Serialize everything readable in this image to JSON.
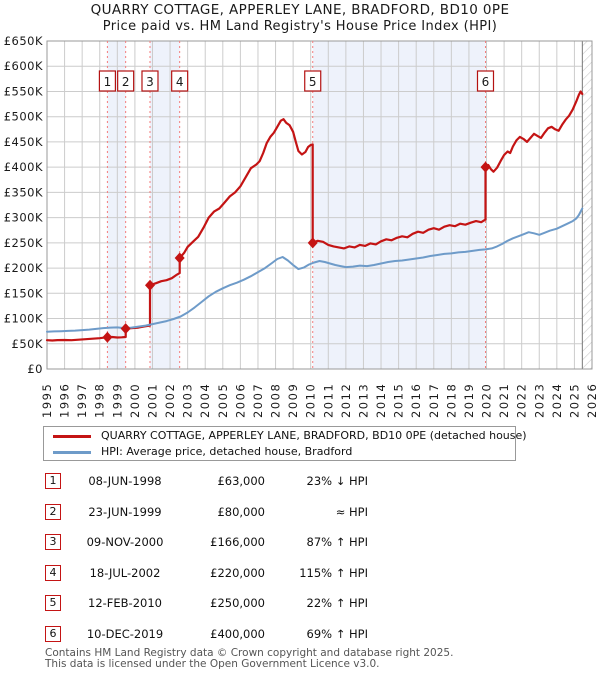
{
  "page": {
    "title": "QUARRY COTTAGE, APPERLEY LANE, BRADFORD, BD10 0PE",
    "subtitle": "Price paid vs. HM Land Registry's House Price Index (HPI)"
  },
  "chart_data": {
    "type": "line",
    "title": "QUARRY COTTAGE, APPERLEY LANE, BRADFORD, BD10 0PE",
    "subtitle": "Price paid vs. HM Land Registry's House Price Index (HPI)",
    "units": "GBP_thousands",
    "x_axis": {
      "start": 1995,
      "end": 2026,
      "years": [
        1995,
        1996,
        1997,
        1998,
        1999,
        2000,
        2001,
        2002,
        2003,
        2004,
        2005,
        2006,
        2007,
        2008,
        2009,
        2010,
        2011,
        2012,
        2013,
        2014,
        2015,
        2016,
        2017,
        2018,
        2019,
        2020,
        2021,
        2022,
        2023,
        2024,
        2025,
        2026
      ]
    },
    "y_axis": {
      "min": 0,
      "max": 650,
      "tick_step": 50,
      "tick_labels": [
        "£0",
        "£50K",
        "£100K",
        "£150K",
        "£200K",
        "£250K",
        "£300K",
        "£350K",
        "£400K",
        "£450K",
        "£500K",
        "£550K",
        "£600K",
        "£650K"
      ]
    },
    "grid": true,
    "legend_position": "below",
    "future_hatch_start": 2025.45,
    "ownership_bands": [
      [
        1998.436,
        1999.474
      ],
      [
        2000.858,
        2002.546
      ],
      [
        2010.115,
        2019.942
      ]
    ],
    "colors": {
      "price": "#c41414",
      "hpi": "#6e9bc9",
      "band": "#eef2fb",
      "dashed": "#f47c7c",
      "grid": "#cccccc",
      "border": "#999999",
      "hatch": "#c9c9c9",
      "hatch_edge": "#777777"
    },
    "series": [
      {
        "name": "QUARRY COTTAGE, APPERLEY LANE, BRADFORD, BD10 0PE (detached house)",
        "color": "#c41414",
        "points": [
          [
            1995.0,
            57
          ],
          [
            1995.3,
            56.5
          ],
          [
            1995.6,
            57.2
          ],
          [
            1996.0,
            57.5
          ],
          [
            1996.4,
            57
          ],
          [
            1996.8,
            58
          ],
          [
            1997.2,
            59
          ],
          [
            1997.6,
            60
          ],
          [
            1998.0,
            61
          ],
          [
            1998.436,
            63
          ],
          [
            1998.7,
            63.5
          ],
          [
            1999.0,
            62.5
          ],
          [
            1999.25,
            62.8
          ],
          [
            1999.474,
            63.5
          ],
          [
            1999.474,
            80
          ],
          [
            1999.8,
            81
          ],
          [
            2000.2,
            82
          ],
          [
            2000.5,
            84
          ],
          [
            2000.858,
            86
          ],
          [
            2000.858,
            166
          ],
          [
            2001.2,
            170
          ],
          [
            2001.5,
            174
          ],
          [
            2001.8,
            176
          ],
          [
            2002.1,
            180
          ],
          [
            2002.35,
            186
          ],
          [
            2002.546,
            190
          ],
          [
            2002.546,
            220
          ],
          [
            2002.8,
            230
          ],
          [
            2003.0,
            242
          ],
          [
            2003.3,
            252
          ],
          [
            2003.6,
            262
          ],
          [
            2003.9,
            280
          ],
          [
            2004.2,
            300
          ],
          [
            2004.5,
            312
          ],
          [
            2004.8,
            318
          ],
          [
            2005.1,
            330
          ],
          [
            2005.4,
            342
          ],
          [
            2005.7,
            350
          ],
          [
            2006.0,
            362
          ],
          [
            2006.3,
            380
          ],
          [
            2006.6,
            398
          ],
          [
            2006.9,
            405
          ],
          [
            2007.1,
            412
          ],
          [
            2007.3,
            428
          ],
          [
            2007.5,
            448
          ],
          [
            2007.7,
            460
          ],
          [
            2007.9,
            468
          ],
          [
            2008.1,
            480
          ],
          [
            2008.3,
            492
          ],
          [
            2008.45,
            495
          ],
          [
            2008.6,
            488
          ],
          [
            2008.8,
            483
          ],
          [
            2009.0,
            470
          ],
          [
            2009.15,
            450
          ],
          [
            2009.3,
            432
          ],
          [
            2009.5,
            425
          ],
          [
            2009.7,
            430
          ],
          [
            2009.85,
            440
          ],
          [
            2010.0,
            444
          ],
          [
            2010.115,
            445
          ],
          [
            2010.115,
            250
          ],
          [
            2010.4,
            254
          ],
          [
            2010.7,
            252
          ],
          [
            2011.0,
            246
          ],
          [
            2011.3,
            243
          ],
          [
            2011.6,
            241
          ],
          [
            2011.9,
            239
          ],
          [
            2012.2,
            243
          ],
          [
            2012.5,
            241
          ],
          [
            2012.8,
            246
          ],
          [
            2013.1,
            244
          ],
          [
            2013.4,
            249
          ],
          [
            2013.7,
            247
          ],
          [
            2014.0,
            253
          ],
          [
            2014.3,
            257
          ],
          [
            2014.6,
            255
          ],
          [
            2014.9,
            260
          ],
          [
            2015.2,
            263
          ],
          [
            2015.5,
            261
          ],
          [
            2015.8,
            268
          ],
          [
            2016.1,
            272
          ],
          [
            2016.4,
            270
          ],
          [
            2016.7,
            276
          ],
          [
            2017.0,
            279
          ],
          [
            2017.3,
            276
          ],
          [
            2017.6,
            282
          ],
          [
            2017.9,
            285
          ],
          [
            2018.2,
            283
          ],
          [
            2018.5,
            288
          ],
          [
            2018.8,
            286
          ],
          [
            2019.1,
            290
          ],
          [
            2019.4,
            293
          ],
          [
            2019.7,
            291
          ],
          [
            2019.942,
            296
          ],
          [
            2019.942,
            400
          ],
          [
            2020.1,
            404
          ],
          [
            2020.25,
            396
          ],
          [
            2020.4,
            391
          ],
          [
            2020.6,
            399
          ],
          [
            2020.8,
            412
          ],
          [
            2021.0,
            424
          ],
          [
            2021.2,
            431
          ],
          [
            2021.35,
            428
          ],
          [
            2021.5,
            441
          ],
          [
            2021.7,
            453
          ],
          [
            2021.9,
            460
          ],
          [
            2022.1,
            456
          ],
          [
            2022.3,
            450
          ],
          [
            2022.5,
            458
          ],
          [
            2022.7,
            466
          ],
          [
            2022.9,
            462
          ],
          [
            2023.1,
            458
          ],
          [
            2023.3,
            468
          ],
          [
            2023.5,
            477
          ],
          [
            2023.7,
            480
          ],
          [
            2023.9,
            475
          ],
          [
            2024.1,
            472
          ],
          [
            2024.3,
            484
          ],
          [
            2024.5,
            494
          ],
          [
            2024.7,
            502
          ],
          [
            2024.9,
            514
          ],
          [
            2025.1,
            530
          ],
          [
            2025.25,
            543
          ],
          [
            2025.35,
            550
          ],
          [
            2025.45,
            545
          ]
        ]
      },
      {
        "name": "HPI: Average price, detached house, Bradford",
        "color": "#6e9bc9",
        "points": [
          [
            1995.0,
            74
          ],
          [
            1995.4,
            74.5
          ],
          [
            1995.8,
            75
          ],
          [
            1996.2,
            75.5
          ],
          [
            1996.6,
            76
          ],
          [
            1997.0,
            77
          ],
          [
            1997.4,
            78
          ],
          [
            1997.8,
            79.5
          ],
          [
            1998.2,
            81
          ],
          [
            1998.6,
            82
          ],
          [
            1999.0,
            82.5
          ],
          [
            1999.4,
            81
          ],
          [
            1999.8,
            82
          ],
          [
            2000.2,
            84
          ],
          [
            2000.6,
            86
          ],
          [
            2001.0,
            89
          ],
          [
            2001.4,
            92
          ],
          [
            2001.8,
            95
          ],
          [
            2002.2,
            99
          ],
          [
            2002.6,
            104
          ],
          [
            2003.0,
            112
          ],
          [
            2003.4,
            122
          ],
          [
            2003.8,
            133
          ],
          [
            2004.2,
            144
          ],
          [
            2004.6,
            153
          ],
          [
            2005.0,
            160
          ],
          [
            2005.4,
            166
          ],
          [
            2005.8,
            171
          ],
          [
            2006.2,
            177
          ],
          [
            2006.6,
            184
          ],
          [
            2007.0,
            192
          ],
          [
            2007.4,
            200
          ],
          [
            2007.8,
            210
          ],
          [
            2008.1,
            218
          ],
          [
            2008.4,
            222
          ],
          [
            2008.7,
            215
          ],
          [
            2009.0,
            206
          ],
          [
            2009.3,
            198
          ],
          [
            2009.6,
            201
          ],
          [
            2009.9,
            207
          ],
          [
            2010.2,
            211
          ],
          [
            2010.5,
            214
          ],
          [
            2010.8,
            212
          ],
          [
            2011.1,
            209
          ],
          [
            2011.4,
            206
          ],
          [
            2011.7,
            204
          ],
          [
            2012.0,
            202
          ],
          [
            2012.4,
            203
          ],
          [
            2012.8,
            205
          ],
          [
            2013.2,
            204
          ],
          [
            2013.6,
            206
          ],
          [
            2014.0,
            209
          ],
          [
            2014.4,
            212
          ],
          [
            2014.8,
            214
          ],
          [
            2015.2,
            215
          ],
          [
            2015.6,
            217
          ],
          [
            2016.0,
            219
          ],
          [
            2016.4,
            221
          ],
          [
            2016.8,
            224
          ],
          [
            2017.2,
            226
          ],
          [
            2017.6,
            228
          ],
          [
            2018.0,
            229
          ],
          [
            2018.4,
            231
          ],
          [
            2018.8,
            232
          ],
          [
            2019.2,
            234
          ],
          [
            2019.6,
            236
          ],
          [
            2019.942,
            237
          ],
          [
            2020.3,
            239
          ],
          [
            2020.6,
            243
          ],
          [
            2020.9,
            248
          ],
          [
            2021.2,
            254
          ],
          [
            2021.5,
            259
          ],
          [
            2021.8,
            263
          ],
          [
            2022.1,
            267
          ],
          [
            2022.4,
            271
          ],
          [
            2022.7,
            269
          ],
          [
            2023.0,
            266
          ],
          [
            2023.3,
            270
          ],
          [
            2023.6,
            274
          ],
          [
            2024.0,
            278
          ],
          [
            2024.3,
            283
          ],
          [
            2024.6,
            288
          ],
          [
            2024.9,
            293
          ],
          [
            2025.1,
            298
          ],
          [
            2025.25,
            305
          ],
          [
            2025.45,
            318
          ]
        ]
      }
    ],
    "sales": [
      {
        "n": "1",
        "date": "08-JUN-1998",
        "year": 1998.436,
        "price": 63,
        "price_label": "£63,000",
        "vs_hpi": "23% ↓ HPI"
      },
      {
        "n": "2",
        "date": "23-JUN-1999",
        "year": 1999.474,
        "price": 80,
        "price_label": "£80,000",
        "vs_hpi": "≈ HPI"
      },
      {
        "n": "3",
        "date": "09-NOV-2000",
        "year": 2000.858,
        "price": 166,
        "price_label": "£166,000",
        "vs_hpi": "87% ↑ HPI"
      },
      {
        "n": "4",
        "date": "18-JUL-2002",
        "year": 2002.546,
        "price": 220,
        "price_label": "£220,000",
        "vs_hpi": "115% ↑ HPI"
      },
      {
        "n": "5",
        "date": "12-FEB-2010",
        "year": 2010.115,
        "price": 250,
        "price_label": "£250,000",
        "vs_hpi": "22% ↑ HPI"
      },
      {
        "n": "6",
        "date": "10-DEC-2019",
        "year": 2019.942,
        "price": 400,
        "price_label": "£400,000",
        "vs_hpi": "69% ↑ HPI"
      }
    ]
  },
  "legend": {
    "items": [
      {
        "label": "QUARRY COTTAGE, APPERLEY LANE, BRADFORD, BD10 0PE (detached house)",
        "color": "#c41414",
        "thickness": 3
      },
      {
        "label": "HPI: Average price, detached house, Bradford",
        "color": "#6e9bc9",
        "thickness": 2.5
      }
    ]
  },
  "footer": {
    "line1": "Contains HM Land Registry data © Crown copyright and database right 2025.",
    "line2": "This data is licensed under the Open Government Licence v3.0."
  }
}
